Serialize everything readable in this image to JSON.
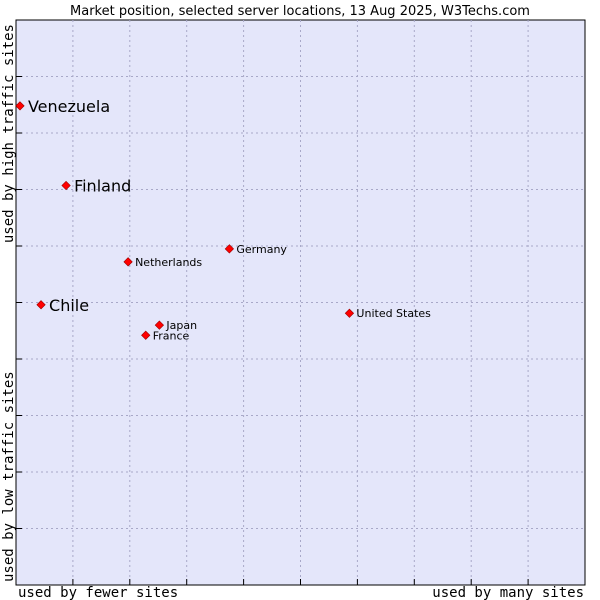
{
  "chart_data": {
    "type": "scatter",
    "title": "Market position, selected server locations, 13 Aug 2025, W3Techs.com",
    "xlabel_left": "used by fewer sites",
    "xlabel_right": "used by many sites",
    "ylabel_top": "used by high traffic sites",
    "ylabel_bottom": "used by low traffic sites",
    "grid": true,
    "colors": {
      "plot_bg": "#e4e6fa",
      "grid": "#a8a8c8",
      "axis": "#000000",
      "marker": "#ff0000",
      "marker_edge": "#990000"
    },
    "xlim": [
      0,
      100
    ],
    "ylim": [
      0,
      100
    ],
    "points": [
      {
        "name": "Venezuela",
        "x": 0.7,
        "y": 84.8,
        "size": "large"
      },
      {
        "name": "Finland",
        "x": 8.8,
        "y": 70.7,
        "size": "large"
      },
      {
        "name": "Chile",
        "x": 4.4,
        "y": 49.6,
        "size": "large"
      },
      {
        "name": "Germany",
        "x": 37.5,
        "y": 59.5,
        "size": "small"
      },
      {
        "name": "Netherlands",
        "x": 19.7,
        "y": 57.2,
        "size": "small"
      },
      {
        "name": "Japan",
        "x": 25.2,
        "y": 46.0,
        "size": "small"
      },
      {
        "name": "France",
        "x": 22.8,
        "y": 44.2,
        "size": "small"
      },
      {
        "name": "United States",
        "x": 58.6,
        "y": 48.1,
        "size": "small"
      }
    ]
  }
}
